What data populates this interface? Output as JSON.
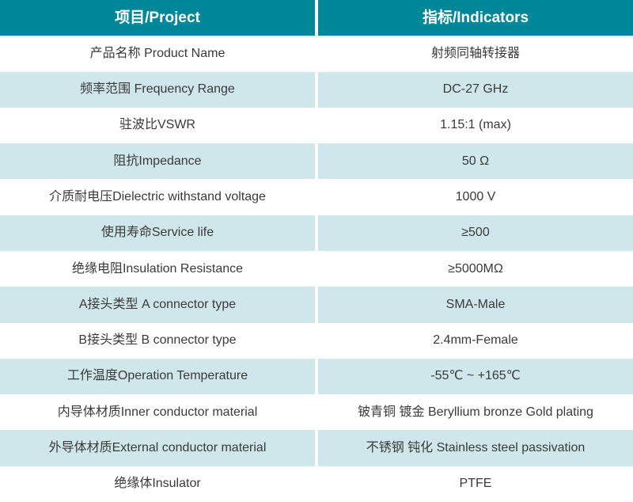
{
  "colors": {
    "header_bg": "#00889a",
    "header_text": "#ffffff",
    "row_tint_bg": "#cfe6ea",
    "row_white_bg": "#ffffff",
    "body_text": "#3a3a3a",
    "column_divider": "#ffffff"
  },
  "table": {
    "header": {
      "project": "项目/Project",
      "indicator": "指标/Indicators"
    },
    "rows": [
      {
        "project": "产品名称 Product Name",
        "indicator": "射频同轴转接器"
      },
      {
        "project": "频率范围 Frequency Range",
        "indicator": "DC-27 GHz"
      },
      {
        "project": "驻波比VSWR",
        "indicator": "1.15:1 (max)"
      },
      {
        "project": "阻抗Impedance",
        "indicator": "50 Ω"
      },
      {
        "project": "介质耐电压Dielectric withstand voltage",
        "indicator": "1000 V"
      },
      {
        "project": "使用寿命Service life",
        "indicator": "≥500"
      },
      {
        "project": "绝缘电阻Insulation Resistance",
        "indicator": "≥5000MΩ"
      },
      {
        "project": "A接头类型 A connector type",
        "indicator": "SMA-Male"
      },
      {
        "project": "B接头类型 B connector type",
        "indicator": "2.4mm-Female"
      },
      {
        "project": "工作温度Operation Temperature",
        "indicator": "-55℃ ~ +165℃"
      },
      {
        "project": "内导体材质Inner conductor material",
        "indicator": "铍青铜 镀金 Beryllium bronze Gold plating"
      },
      {
        "project": "外导体材质External conductor material",
        "indicator": "不锈钢 钝化 Stainless steel passivation"
      },
      {
        "project": "绝缘体Insulator",
        "indicator": "PTFE"
      }
    ]
  }
}
